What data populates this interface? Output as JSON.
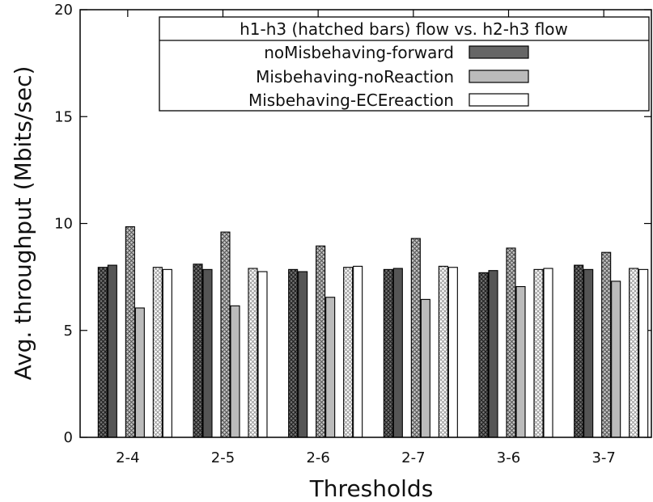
{
  "chart_data": {
    "type": "bar",
    "xlabel": "Thresholds",
    "ylabel": "Avg. throughput (Mbits/sec)",
    "ylim": [
      0,
      20
    ],
    "yticks": [
      0,
      5,
      10,
      15,
      20
    ],
    "categories": [
      "2-4",
      "2-5",
      "2-6",
      "2-7",
      "3-6",
      "3-7"
    ],
    "legend": {
      "title": "h1-h3 (hatched bars) flow vs. h2-h3 flow",
      "placement": "top-right",
      "entries": [
        {
          "label": "noMisbehaving-forward",
          "color": "#666666"
        },
        {
          "label": "Misbehaving-noReaction",
          "color": "#bbbbbb"
        },
        {
          "label": "Misbehaving-ECEreaction",
          "color": "#ffffff"
        }
      ]
    },
    "series": [
      {
        "scenario": "noMisbehaving-forward",
        "flow": "h1-h3",
        "hatched": true,
        "color": "#555555",
        "values": [
          7.95,
          8.1,
          7.85,
          7.85,
          7.7,
          8.05
        ]
      },
      {
        "scenario": "noMisbehaving-forward",
        "flow": "h2-h3",
        "hatched": false,
        "color": "#555555",
        "values": [
          8.05,
          7.85,
          7.75,
          7.9,
          7.8,
          7.85
        ]
      },
      {
        "scenario": "Misbehaving-noReaction",
        "flow": "h1-h3",
        "hatched": true,
        "color": "#999999",
        "values": [
          9.85,
          9.6,
          8.95,
          9.3,
          8.85,
          8.65
        ]
      },
      {
        "scenario": "Misbehaving-noReaction",
        "flow": "h2-h3",
        "hatched": false,
        "color": "#bbbbbb",
        "values": [
          6.05,
          6.15,
          6.55,
          6.45,
          7.05,
          7.3
        ]
      },
      {
        "scenario": "Misbehaving-ECEreaction",
        "flow": "h1-h3",
        "hatched": true,
        "color": "#e0e0e0",
        "values": [
          7.95,
          7.9,
          7.95,
          8.0,
          7.85,
          7.9
        ]
      },
      {
        "scenario": "Misbehaving-ECEreaction",
        "flow": "h2-h3",
        "hatched": false,
        "color": "#ffffff",
        "values": [
          7.85,
          7.75,
          8.0,
          7.95,
          7.9,
          7.85
        ]
      }
    ]
  }
}
